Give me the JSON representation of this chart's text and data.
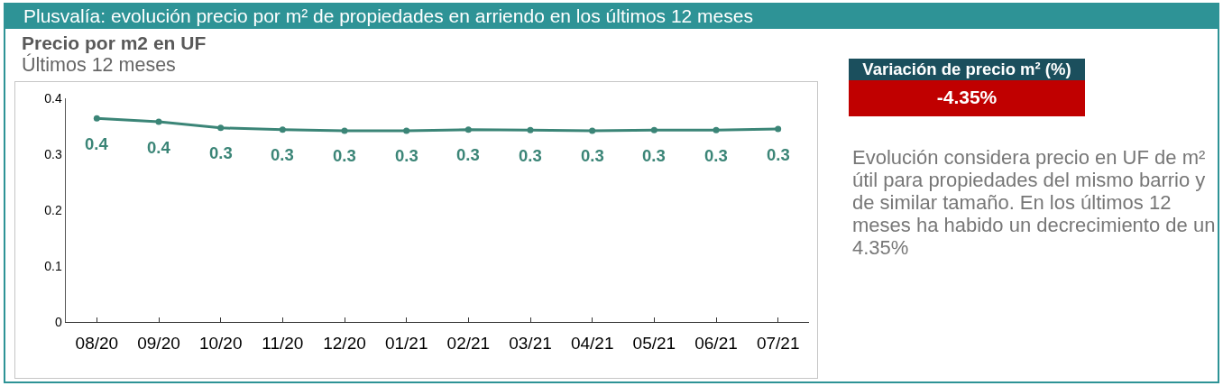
{
  "chart_data": [
    {
      "type": "other",
      "title": "Plusvalía: evolución precio por m² de propiedades en arriendo en los últimos 12 meses"
    },
    {
      "type": "line",
      "title": "Precio por m2 en UF",
      "subtitle": "Últimos 12 meses",
      "categories": [
        "08/20",
        "09/20",
        "10/20",
        "11/20",
        "12/20",
        "01/21",
        "02/21",
        "03/21",
        "04/21",
        "05/21",
        "06/21",
        "07/21"
      ],
      "values": [
        0.364,
        0.358,
        0.347,
        0.344,
        0.342,
        0.342,
        0.344,
        0.343,
        0.342,
        0.343,
        0.343,
        0.345
      ],
      "value_labels": [
        "0.4",
        "0.4",
        "0.3",
        "0.3",
        "0.3",
        "0.3",
        "0.3",
        "0.3",
        "0.3",
        "0.3",
        "0.3",
        "0.3"
      ],
      "color": "#3b8577",
      "marker": "circle",
      "line_style": "solid",
      "ylim": [
        0,
        0.4
      ],
      "yticks": [
        0,
        0.1,
        0.2,
        0.3,
        0.4
      ],
      "grid": false
    },
    {
      "type": "other",
      "title": "Variación de precio m² (%)",
      "annotations": [
        "-4.35%",
        "Evolución considera precio en UF de m² útil para propiedades del mismo barrio y de similar tamaño. En los últimos 12 meses ha habido un decrecimiento de un 4.35%"
      ]
    }
  ]
}
